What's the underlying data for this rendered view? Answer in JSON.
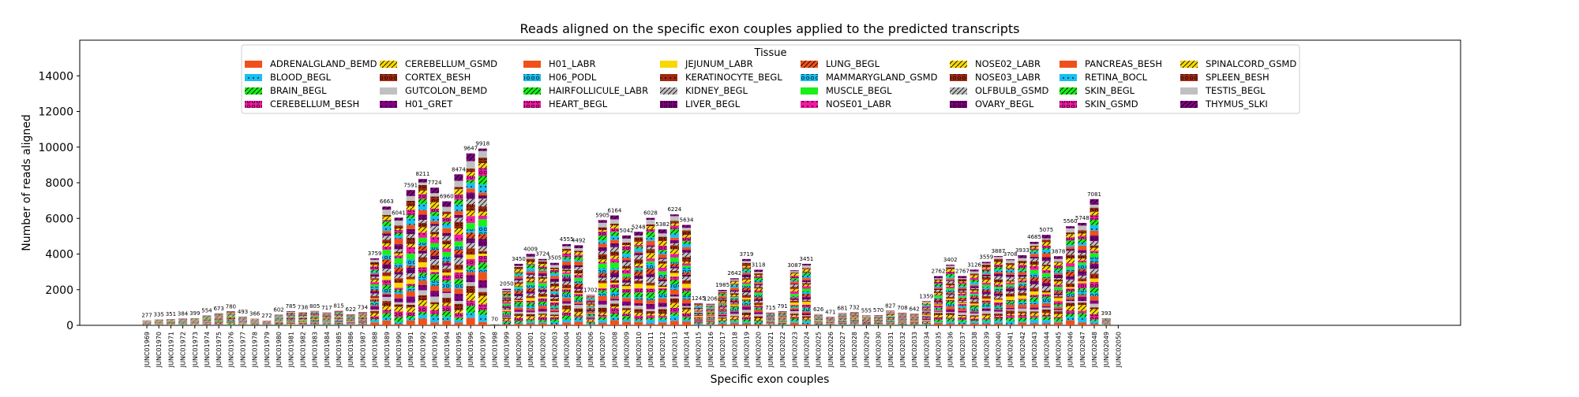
{
  "chart_data": {
    "type": "bar",
    "stacked": true,
    "title": "Reads aligned on the specific exon couples applied to the predicted transcripts",
    "xlabel": "Specific exon couples",
    "ylabel": "Number of reads aligned",
    "ylim": [
      0,
      16000
    ],
    "yticks": [
      "0",
      "2000",
      "4000",
      "6000",
      "8000",
      "10000",
      "12000",
      "14000"
    ],
    "legend": {
      "title": "Tissue",
      "placement": "top-center"
    },
    "categories": [
      "JUNC01969",
      "JUNC01970",
      "JUNC01971",
      "JUNC01972",
      "JUNC01973",
      "JUNC01974",
      "JUNC01975",
      "JUNC01976",
      "JUNC01977",
      "JUNC01978",
      "JUNC01979",
      "JUNC01980",
      "JUNC01981",
      "JUNC01982",
      "JUNC01983",
      "JUNC01984",
      "JUNC01985",
      "JUNC01986",
      "JUNC01987",
      "JUNC01988",
      "JUNC01989",
      "JUNC01990",
      "JUNC01991",
      "JUNC01992",
      "JUNC01993",
      "JUNC01994",
      "JUNC01995",
      "JUNC01996",
      "JUNC01997",
      "JUNC01998",
      "JUNC01999",
      "JUNC02000",
      "JUNC02001",
      "JUNC02002",
      "JUNC02003",
      "JUNC02004",
      "JUNC02005",
      "JUNC02006",
      "JUNC02007",
      "JUNC02008",
      "JUNC02009",
      "JUNC02010",
      "JUNC02011",
      "JUNC02012",
      "JUNC02013",
      "JUNC02014",
      "JUNC02015",
      "JUNC02016",
      "JUNC02017",
      "JUNC02018",
      "JUNC02019",
      "JUNC02020",
      "JUNC02021",
      "JUNC02022",
      "JUNC02023",
      "JUNC02024",
      "JUNC02025",
      "JUNC02026",
      "JUNC02027",
      "JUNC02028",
      "JUNC02029",
      "JUNC02030",
      "JUNC02031",
      "JUNC02032",
      "JUNC02033",
      "JUNC02034",
      "JUNC02035",
      "JUNC02036",
      "JUNC02037",
      "JUNC02038",
      "JUNC02039",
      "JUNC02040",
      "JUNC02041",
      "JUNC02042",
      "JUNC02043",
      "JUNC02044",
      "JUNC02045",
      "JUNC02046",
      "JUNC02047",
      "JUNC02048",
      "JUNC02049",
      "JUNC02050"
    ],
    "totals": [
      277,
      335,
      351,
      384,
      399,
      554,
      673,
      780,
      493,
      366,
      272,
      602,
      785,
      738,
      805,
      717,
      815,
      622,
      734,
      3759,
      6663,
      6041,
      7591,
      8211,
      7724,
      6960,
      8474,
      9647,
      9918,
      70,
      2050,
      3450,
      4009,
      3724,
      3505,
      4555,
      4492,
      1702,
      5905,
      6164,
      5042,
      5248,
      6028,
      5382,
      6224,
      5634,
      1245,
      1206,
      1985,
      2642,
      3719,
      3118,
      715,
      791,
      3087,
      3451,
      626,
      471,
      681,
      732,
      555,
      570,
      827,
      708,
      642,
      1359,
      2762,
      3402,
      2767,
      3126,
      3559,
      3887,
      3708,
      3933,
      4685,
      5075,
      3878,
      5560,
      5748,
      7081,
      393,
      null
    ],
    "total_labels": [
      "277",
      "335",
      "351",
      "384",
      "399",
      "554",
      "673",
      "780",
      "493",
      "366",
      "272",
      "602",
      "785",
      "738",
      "805",
      "717",
      "815",
      "622",
      "734",
      "3759",
      "6663",
      "6041",
      "7591",
      "8211",
      "7724",
      "6960",
      "8474",
      "9647",
      "9918",
      "70",
      "2050",
      "3450",
      "4009",
      "3724",
      "3505",
      "4555",
      "4492",
      "1702",
      "5905",
      "6164",
      "5042",
      "5248",
      "6028",
      "5382",
      "6224",
      "5634",
      "1245",
      "1206",
      "1985",
      "2642",
      "3719",
      "3118",
      "715",
      "791",
      "3087",
      "3451",
      "626",
      "471",
      "681",
      "732",
      "555",
      "570",
      "827",
      "708",
      "642",
      "1359",
      "2762",
      "3402",
      "2767",
      "3126",
      "3559",
      "3887",
      "3708",
      "3933",
      "4685",
      "5075",
      "3878",
      "5560",
      "5748",
      "7081",
      "393",
      ""
    ],
    "series": [
      {
        "name": "ADRENALGLAND_BEMD",
        "color": "#f0501a",
        "hatch": "none"
      },
      {
        "name": "BLOOD_BEGL",
        "color": "#18bff0",
        "hatch": "dot"
      },
      {
        "name": "BRAIN_BEGL",
        "color": "#18f018",
        "hatch": "slash"
      },
      {
        "name": "CEREBELLUM_BESH",
        "color": "#f018a0",
        "hatch": "ring"
      },
      {
        "name": "CEREBELLUM_GSMD",
        "color": "#f8d800",
        "hatch": "slash"
      },
      {
        "name": "CORTEX_BESH",
        "color": "#a02810",
        "hatch": "ring"
      },
      {
        "name": "GUTCOLON_BEMD",
        "color": "#c0c0c0",
        "hatch": "none"
      },
      {
        "name": "H01_GRET",
        "color": "#800080",
        "hatch": "dot"
      },
      {
        "name": "H01_LABR",
        "color": "#f0501a",
        "hatch": "none"
      },
      {
        "name": "H06_PODL",
        "color": "#18bff0",
        "hatch": "ring"
      },
      {
        "name": "HAIRFOLLICULE_LABR",
        "color": "#18f018",
        "hatch": "slash"
      },
      {
        "name": "HEART_BEGL",
        "color": "#f018a0",
        "hatch": "ring"
      },
      {
        "name": "JEJUNUM_LABR",
        "color": "#f8d800",
        "hatch": "none"
      },
      {
        "name": "KERATINOCYTE_BEGL",
        "color": "#a02810",
        "hatch": "dot"
      },
      {
        "name": "KIDNEY_BEGL",
        "color": "#c0c0c0",
        "hatch": "slash"
      },
      {
        "name": "LIVER_BEGL",
        "color": "#800080",
        "hatch": "ring"
      },
      {
        "name": "LUNG_BEGL",
        "color": "#f0501a",
        "hatch": "slash"
      },
      {
        "name": "MAMMARYGLAND_GSMD",
        "color": "#18bff0",
        "hatch": "ring"
      },
      {
        "name": "MUSCLE_BEGL",
        "color": "#18f018",
        "hatch": "none"
      },
      {
        "name": "NOSE01_LABR",
        "color": "#f018a0",
        "hatch": "dot"
      },
      {
        "name": "NOSE02_LABR",
        "color": "#f8d800",
        "hatch": "slash"
      },
      {
        "name": "NOSE03_LABR",
        "color": "#a02810",
        "hatch": "ring"
      },
      {
        "name": "OLFBULB_GSMD",
        "color": "#c0c0c0",
        "hatch": "slash"
      },
      {
        "name": "OVARY_BEGL",
        "color": "#800080",
        "hatch": "ring"
      },
      {
        "name": "PANCREAS_BESH",
        "color": "#f0501a",
        "hatch": "none"
      },
      {
        "name": "RETINA_BOCL",
        "color": "#18bff0",
        "hatch": "dot"
      },
      {
        "name": "SKIN_BEGL",
        "color": "#18f018",
        "hatch": "slash"
      },
      {
        "name": "SKIN_GSMD",
        "color": "#f018a0",
        "hatch": "ring"
      },
      {
        "name": "SPINALCORD_GSMD",
        "color": "#f8d800",
        "hatch": "slash"
      },
      {
        "name": "SPLEEN_BESH",
        "color": "#a02810",
        "hatch": "ring"
      },
      {
        "name": "TESTIS_BEGL",
        "color": "#c0c0c0",
        "hatch": "none"
      },
      {
        "name": "THYMUS_SLKI",
        "color": "#800080",
        "hatch": "slash"
      }
    ]
  }
}
